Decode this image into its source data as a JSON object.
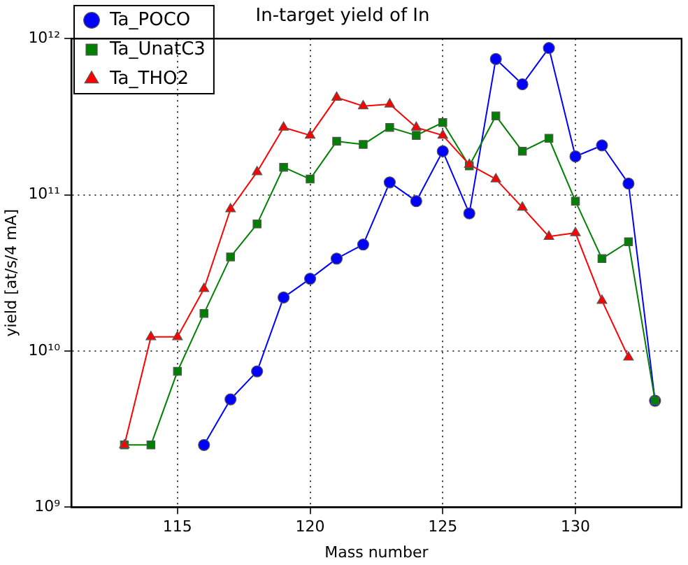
{
  "chart_data": {
    "type": "line",
    "title": "In-target yield of In",
    "xlabel": "Mass number",
    "ylabel": "yield [at/s/4 mA]",
    "x": [
      113,
      114,
      115,
      116,
      117,
      118,
      119,
      120,
      121,
      122,
      123,
      124,
      125,
      126,
      127,
      128,
      129,
      130,
      131,
      132,
      133
    ],
    "series": [
      {
        "name": "Ta_POCO",
        "color": "#0000ff",
        "marker": "circle",
        "values": [
          null,
          null,
          null,
          2500000000.0,
          4900000000.0,
          7400000000.0,
          22000000000.0,
          29000000000.0,
          39000000000.0,
          48000000000.0,
          120000000000.0,
          91000000000.0,
          190000000000.0,
          76000000000.0,
          740000000000.0,
          510000000000.0,
          870000000000.0,
          176000000000.0,
          207000000000.0,
          118000000000.0,
          4800000000.0
        ]
      },
      {
        "name": "Ta_UnatC3",
        "color": "#008000",
        "marker": "square",
        "values": [
          2500000000.0,
          2500000000.0,
          7400000000.0,
          17400000000.0,
          40000000000.0,
          65000000000.0,
          150000000000.0,
          126000000000.0,
          220000000000.0,
          210000000000.0,
          270000000000.0,
          240000000000.0,
          290000000000.0,
          153000000000.0,
          320000000000.0,
          190000000000.0,
          230000000000.0,
          91000000000.0,
          39000000000.0,
          50000000000.0,
          4800000000.0
        ]
      },
      {
        "name": "Ta_THO2",
        "color": "#ff0000",
        "marker": "triangle",
        "values": [
          2500000000.0,
          12300000000.0,
          12300000000.0,
          25000000000.0,
          81000000000.0,
          140000000000.0,
          270000000000.0,
          240000000000.0,
          420000000000.0,
          370000000000.0,
          380000000000.0,
          270000000000.0,
          240000000000.0,
          156000000000.0,
          126000000000.0,
          83000000000.0,
          54000000000.0,
          57000000000.0,
          21000000000.0,
          9100000000.0,
          null
        ]
      }
    ],
    "xlim": [
      111,
      134
    ],
    "xticks": [
      115,
      120,
      125,
      130
    ],
    "ylim": [
      1000000000.0,
      1000000000000.0
    ],
    "yticks": [
      {
        "value": 1000000000.0,
        "label": "10⁹"
      },
      {
        "value": 10000000000.0,
        "label": "10¹⁰"
      },
      {
        "value": 100000000000.0,
        "label": "10¹¹"
      },
      {
        "value": 1000000000000.0,
        "label": "10¹²"
      }
    ],
    "log": "y",
    "grid": true,
    "legend": "top left",
    "line_style": "solid"
  }
}
